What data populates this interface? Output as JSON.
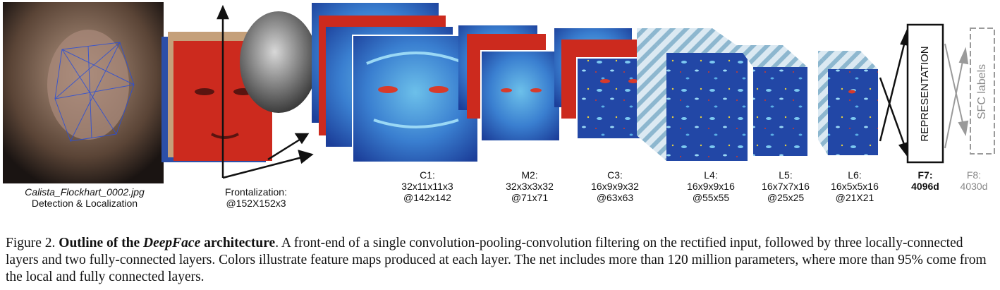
{
  "labels": {
    "input": {
      "filename": "Calista_Flockhart_0002.jpg",
      "caption": "Detection & Localization"
    },
    "frontal": {
      "line1": "Frontalization:",
      "line2": "@152X152x3"
    },
    "c1": {
      "line1": "C1:",
      "line2": "32x11x11x3",
      "line3": "@142x142"
    },
    "m2": {
      "line1": "M2:",
      "line2": "32x3x3x32",
      "line3": "@71x71"
    },
    "c3": {
      "line1": "C3:",
      "line2": "16x9x9x32",
      "line3": "@63x63"
    },
    "l4": {
      "line1": "L4:",
      "line2": "16x9x9x16",
      "line3": "@55x55"
    },
    "l5": {
      "line1": "L5:",
      "line2": "16x7x7x16",
      "line3": "@25x25"
    },
    "l6": {
      "line1": "L6:",
      "line2": "16x5x5x16",
      "line3": "@21X21"
    },
    "f7": {
      "line1": "F7:",
      "line2": "4096d"
    },
    "f8": {
      "line1": "F8:",
      "line2": "4030d"
    }
  },
  "boxes": {
    "representation": "REPRESENTATION",
    "sfc": "SFC labels"
  },
  "caption": {
    "prefix": "Figure 2. ",
    "bold1": "Outline of the ",
    "bold_italic": "DeepFace",
    "bold2": " architecture",
    "rest": ". A front-end of a single convolution-pooling-convolution filtering on the rectified input, followed by three locally-connected layers and two fully-connected layers. Colors illustrate feature maps produced at each layer. The net includes more than 120 million parameters, where more than 95% come from the local and fully connected layers."
  },
  "colors": {
    "feature_dark": "#1c3f9a",
    "feature_light": "#5fb0e0",
    "frontal_red": "#cc2a1e",
    "representation_border": "#111111",
    "sfc_border": "#999999"
  }
}
